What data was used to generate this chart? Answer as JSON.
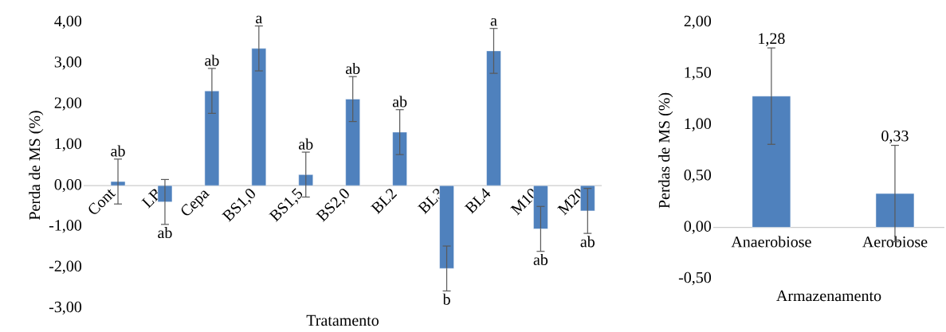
{
  "chart_data": [
    {
      "type": "bar",
      "xlabel": "Tratamento",
      "ylabel": "Perda de MS (%)",
      "categories": [
        "Cont",
        "LB",
        "Cepa",
        "BS1,0",
        "BS1,5",
        "BS2,0",
        "BL2",
        "BL3",
        "BL4",
        "M10",
        "M20"
      ],
      "values": [
        0.1,
        -0.4,
        2.32,
        3.36,
        0.27,
        2.12,
        1.31,
        -2.03,
        3.3,
        -1.06,
        -0.62
      ],
      "errors": [
        0.55,
        0.55,
        0.55,
        0.55,
        0.55,
        0.55,
        0.55,
        0.55,
        0.55,
        0.55,
        0.55
      ],
      "color": "#4f81bd",
      "ylim": [
        -3,
        4
      ],
      "yticks": [
        {
          "value": -3,
          "label": "-3,00"
        },
        {
          "value": -2,
          "label": "-2,00"
        },
        {
          "value": -1,
          "label": "-1,00"
        },
        {
          "value": 0,
          "label": "0,00"
        },
        {
          "value": 1,
          "label": "1,00"
        },
        {
          "value": 2,
          "label": "2,00"
        },
        {
          "value": 3,
          "label": "3,00"
        },
        {
          "value": 4,
          "label": "4,00"
        }
      ],
      "grid": false,
      "annotations": [
        "ab",
        "ab",
        "ab",
        "a",
        "ab",
        "ab",
        "ab",
        "b",
        "a",
        "ab",
        "ab"
      ]
    },
    {
      "type": "bar",
      "xlabel": "Armazenamento",
      "ylabel": "Perdas de MS (%)",
      "categories": [
        "Anaerobiose",
        "Aerobiose"
      ],
      "values": [
        1.28,
        0.33
      ],
      "errors": [
        0.47,
        0.47
      ],
      "value_labels": [
        "1,28",
        "0,33"
      ],
      "color": "#4f81bd",
      "ylim": [
        -0.5,
        2
      ],
      "yticks": [
        {
          "value": -0.5,
          "label": "-0,50"
        },
        {
          "value": 0,
          "label": "0,00"
        },
        {
          "value": 0.5,
          "label": "0,50"
        },
        {
          "value": 1,
          "label": "1,00"
        },
        {
          "value": 1.5,
          "label": "1,50"
        },
        {
          "value": 2,
          "label": "2,00"
        }
      ],
      "grid": false
    }
  ]
}
